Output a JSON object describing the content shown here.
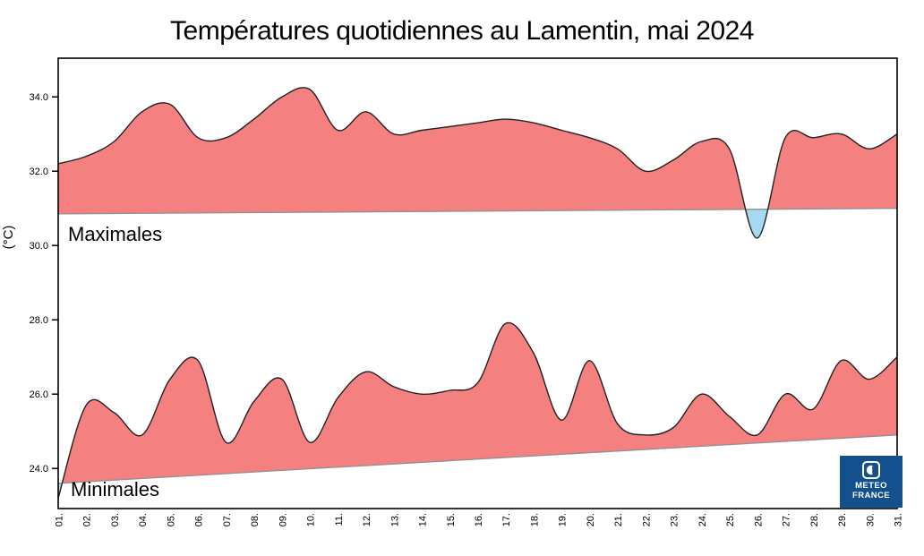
{
  "title": "Températures quotidiennes au Lamentin, mai 2024",
  "y_axis_label": "(°C)",
  "logo": {
    "line1": "METEO",
    "line2": "FRANCE",
    "bg_color": "#15508E"
  },
  "colors": {
    "above_normal_fill": "#F58080",
    "below_normal_fill": "#A6D8F2",
    "curve_stroke": "#222222",
    "normal_line_stroke": "#909090",
    "axis_stroke": "#000000"
  },
  "chart_data": {
    "type": "area",
    "title": "Températures quotidiennes au Lamentin, mai 2024",
    "xlabel": "",
    "ylabel": "(°C)",
    "grid": false,
    "legend_position": "labels inside plot (Maximales top, Minimales bottom)",
    "ylim": [
      22.92,
      35.04
    ],
    "y_ticks": [
      34,
      32,
      30,
      28,
      26,
      24
    ],
    "y_tick_labels": [
      "34.0",
      "32.0",
      "30.0",
      "28.0",
      "26.0",
      "24.0"
    ],
    "x_tick_labels": [
      "01.",
      "02.",
      "03.",
      "04.",
      "05.",
      "06.",
      "07.",
      "08.",
      "09.",
      "10.",
      "11.",
      "12.",
      "13.",
      "14.",
      "15.",
      "16.",
      "17.",
      "18.",
      "19.",
      "20.",
      "21.",
      "22.",
      "23.",
      "24.",
      "25.",
      "26.",
      "27.",
      "28.",
      "29.",
      "30.",
      "31."
    ],
    "days": [
      1,
      2,
      3,
      4,
      5,
      6,
      7,
      8,
      9,
      10,
      11,
      12,
      13,
      14,
      15,
      16,
      17,
      18,
      19,
      20,
      21,
      22,
      23,
      24,
      25,
      26,
      27,
      28,
      29,
      30,
      31
    ],
    "series": [
      {
        "name": "Maximales",
        "values": [
          32.2,
          32.4,
          32.8,
          33.6,
          33.8,
          32.9,
          32.9,
          33.4,
          34.0,
          34.2,
          33.1,
          33.6,
          33.0,
          33.1,
          33.2,
          33.3,
          33.4,
          33.3,
          33.1,
          32.9,
          32.6,
          32.0,
          32.3,
          32.8,
          32.6,
          30.2,
          32.9,
          32.9,
          33.0,
          32.6,
          33.0
        ]
      },
      {
        "name": "Minimales",
        "values": [
          23.2,
          25.7,
          25.5,
          24.9,
          26.4,
          26.9,
          24.7,
          25.8,
          26.4,
          24.7,
          25.9,
          26.6,
          26.2,
          26.0,
          26.1,
          26.3,
          27.9,
          27.1,
          25.3,
          26.9,
          25.2,
          24.9,
          25.1,
          26.0,
          25.4,
          24.9,
          26.0,
          25.6,
          26.9,
          26.4,
          27.0
        ]
      }
    ],
    "normals": {
      "description": "nearly linear climatological normal baselines; red fill where daily value is above normal, blue where below",
      "max": {
        "start": 30.85,
        "end": 31.0
      },
      "min": {
        "start": 23.6,
        "end": 24.9
      }
    }
  }
}
